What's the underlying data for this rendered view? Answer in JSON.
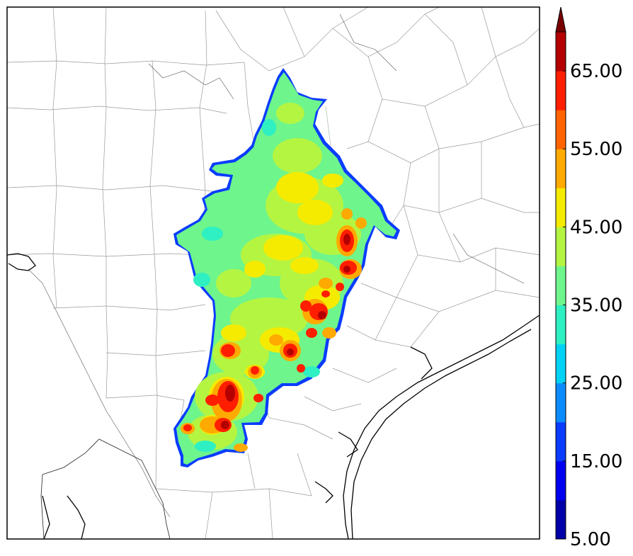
{
  "map": {
    "border_color": "#000000",
    "county_line_color": "#9a9a9a",
    "coast_color": "#000000",
    "background": "#ffffff"
  },
  "colorbar": {
    "labels": [
      "5.00",
      "15.00",
      "25.00",
      "35.00",
      "45.00",
      "55.00",
      "65.00"
    ],
    "level_min": 5,
    "level_max": 70,
    "level_step": 5,
    "extend": "max",
    "colors": [
      "#0000a8",
      "#0000f0",
      "#0a3cff",
      "#0a8cff",
      "#00d2f5",
      "#2ef0c2",
      "#6ef58c",
      "#b4f542",
      "#f5eb00",
      "#ffaa00",
      "#ff6400",
      "#ff1e00",
      "#b40000"
    ],
    "extend_color": "#7a0000"
  }
}
